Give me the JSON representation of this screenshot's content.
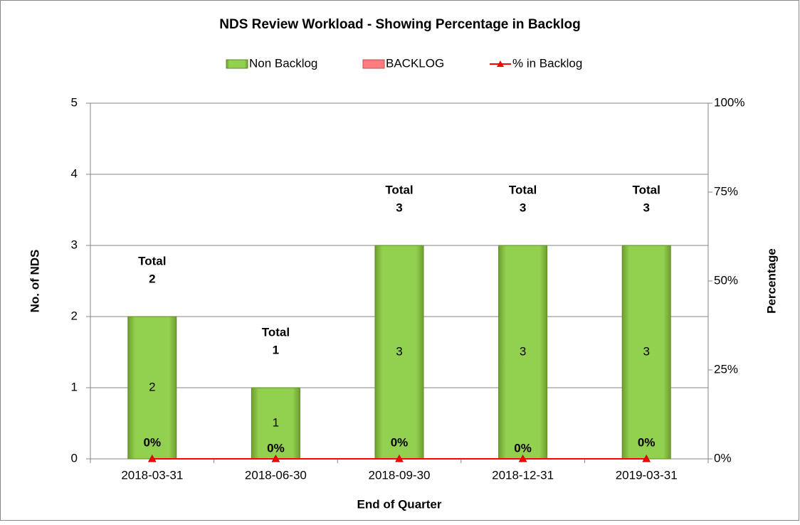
{
  "chart_data": {
    "type": "bar",
    "title": "NDS Review Workload - Showing Percentage in Backlog",
    "x_label": "End of Quarter",
    "y_label": "No. of NDS",
    "y2_label": "Percentage",
    "categories": [
      "2018-03-31",
      "2018-06-30",
      "2018-09-30",
      "2018-12-31",
      "2019-03-31"
    ],
    "series": [
      {
        "name": "Non Backlog",
        "type": "bar",
        "color": "#92d050",
        "values": [
          2,
          1,
          3,
          3,
          3
        ]
      },
      {
        "name": "BACKLOG",
        "type": "bar",
        "color": "#ff7c80",
        "values": [
          0,
          0,
          0,
          0,
          0
        ]
      },
      {
        "name": "% in Backlog",
        "type": "line",
        "axis": "y2",
        "color": "#ff0000",
        "values": [
          0,
          0,
          0,
          0,
          0
        ],
        "value_labels": [
          "0%",
          "0%",
          "0%",
          "0%",
          "0%"
        ]
      }
    ],
    "total_label": "Total",
    "totals": [
      2,
      1,
      3,
      3,
      3
    ],
    "stacked": true,
    "ylim": [
      0,
      5
    ],
    "yticks": [
      0,
      1,
      2,
      3,
      4,
      5
    ],
    "y2lim": [
      0,
      100
    ],
    "y2ticks": [
      {
        "value": 0,
        "label": "0%"
      },
      {
        "value": 25,
        "label": "25%"
      },
      {
        "value": 50,
        "label": "50%"
      },
      {
        "value": 75,
        "label": "75%"
      },
      {
        "value": 100,
        "label": "100%"
      }
    ],
    "grid": true,
    "legend": "top"
  }
}
